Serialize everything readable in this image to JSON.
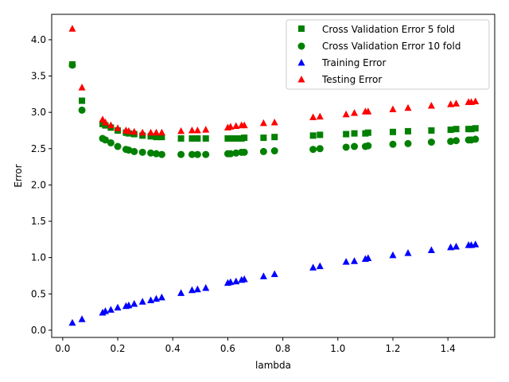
{
  "chart_data": {
    "type": "scatter",
    "xlabel": "lambda",
    "ylabel": "Error",
    "xlim": [
      -0.04,
      1.57
    ],
    "ylim": [
      -0.1,
      4.35
    ],
    "xticks": [
      "0.0",
      "0.2",
      "0.4",
      "0.6",
      "0.8",
      "1.0",
      "1.2",
      "1.4"
    ],
    "yticks": [
      "0.0",
      "0.5",
      "1.0",
      "1.5",
      "2.0",
      "2.5",
      "3.0",
      "3.5",
      "4.0"
    ],
    "grid": false,
    "legend_position": "top-right",
    "x": [
      0.035,
      0.07,
      0.145,
      0.155,
      0.175,
      0.2,
      0.23,
      0.24,
      0.26,
      0.29,
      0.32,
      0.34,
      0.36,
      0.43,
      0.47,
      0.49,
      0.52,
      0.6,
      0.61,
      0.63,
      0.65,
      0.66,
      0.73,
      0.77,
      0.91,
      0.935,
      1.03,
      1.06,
      1.1,
      1.11,
      1.2,
      1.255,
      1.34,
      1.41,
      1.43,
      1.475,
      1.485,
      1.5
    ],
    "series": [
      {
        "name": "Cross Validation Error 5 fold",
        "marker": "square",
        "color": "#008000",
        "values": [
          3.66,
          3.16,
          2.84,
          2.82,
          2.79,
          2.75,
          2.72,
          2.71,
          2.7,
          2.68,
          2.67,
          2.66,
          2.66,
          2.64,
          2.64,
          2.64,
          2.64,
          2.64,
          2.64,
          2.64,
          2.64,
          2.65,
          2.65,
          2.66,
          2.68,
          2.69,
          2.7,
          2.71,
          2.71,
          2.72,
          2.73,
          2.74,
          2.75,
          2.76,
          2.77,
          2.77,
          2.77,
          2.78
        ]
      },
      {
        "name": "Cross Validation Error 10 fold",
        "marker": "circle",
        "color": "#008000",
        "values": [
          3.65,
          3.03,
          2.64,
          2.62,
          2.58,
          2.53,
          2.49,
          2.48,
          2.46,
          2.45,
          2.44,
          2.43,
          2.42,
          2.42,
          2.42,
          2.42,
          2.42,
          2.43,
          2.43,
          2.44,
          2.45,
          2.45,
          2.46,
          2.47,
          2.49,
          2.5,
          2.52,
          2.53,
          2.53,
          2.54,
          2.56,
          2.57,
          2.59,
          2.6,
          2.61,
          2.62,
          2.62,
          2.63
        ]
      },
      {
        "name": "Training Error",
        "marker": "triangle",
        "color": "#0000ff",
        "values": [
          0.1,
          0.15,
          0.24,
          0.26,
          0.28,
          0.31,
          0.33,
          0.34,
          0.36,
          0.39,
          0.41,
          0.43,
          0.45,
          0.51,
          0.55,
          0.56,
          0.58,
          0.65,
          0.66,
          0.67,
          0.69,
          0.7,
          0.74,
          0.77,
          0.86,
          0.88,
          0.94,
          0.95,
          0.98,
          0.99,
          1.03,
          1.06,
          1.1,
          1.14,
          1.15,
          1.17,
          1.17,
          1.18
        ]
      },
      {
        "name": "Testing Error",
        "marker": "triangle",
        "color": "#ff0000",
        "values": [
          4.15,
          3.34,
          2.9,
          2.86,
          2.82,
          2.78,
          2.75,
          2.74,
          2.73,
          2.72,
          2.72,
          2.72,
          2.72,
          2.74,
          2.75,
          2.75,
          2.76,
          2.79,
          2.8,
          2.81,
          2.82,
          2.82,
          2.85,
          2.86,
          2.93,
          2.94,
          2.97,
          2.99,
          3.01,
          3.01,
          3.04,
          3.06,
          3.09,
          3.11,
          3.12,
          3.14,
          3.14,
          3.15
        ]
      }
    ]
  }
}
